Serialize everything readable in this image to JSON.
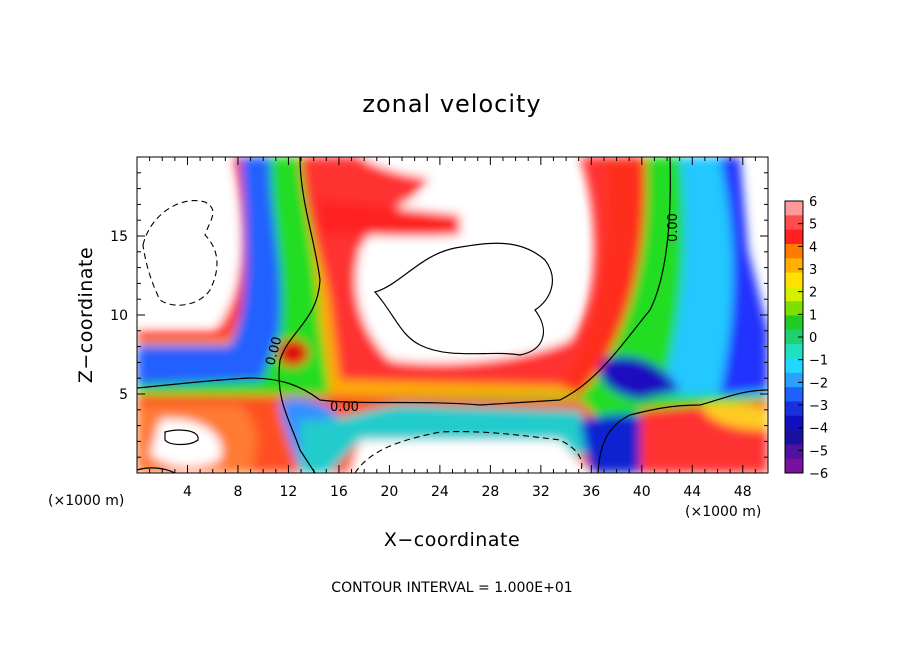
{
  "chart_data": {
    "type": "heatmap",
    "title": "zonal velocity",
    "xlabel": "X−coordinate",
    "ylabel": "Z−coordinate",
    "x_unit": "(×1000 m)",
    "x_unit_right": "(×1000 m)",
    "xlim": [
      0,
      50
    ],
    "ylim": [
      0,
      20
    ],
    "x_ticks": [
      4,
      8,
      12,
      16,
      20,
      24,
      28,
      32,
      36,
      40,
      44,
      48
    ],
    "y_ticks": [
      5,
      10,
      15
    ],
    "colorbar": {
      "range": [
        -6,
        6
      ],
      "ticks": [
        "6",
        "5",
        "4",
        "3",
        "2",
        "1",
        "0",
        "−1",
        "−2",
        "−3",
        "−4",
        "−5",
        "−6"
      ]
    },
    "contour_labels": [
      "0.00",
      "0.00",
      "0.00"
    ],
    "contour_interval": "CONTOUR INTERVAL = 1.000E+01"
  }
}
